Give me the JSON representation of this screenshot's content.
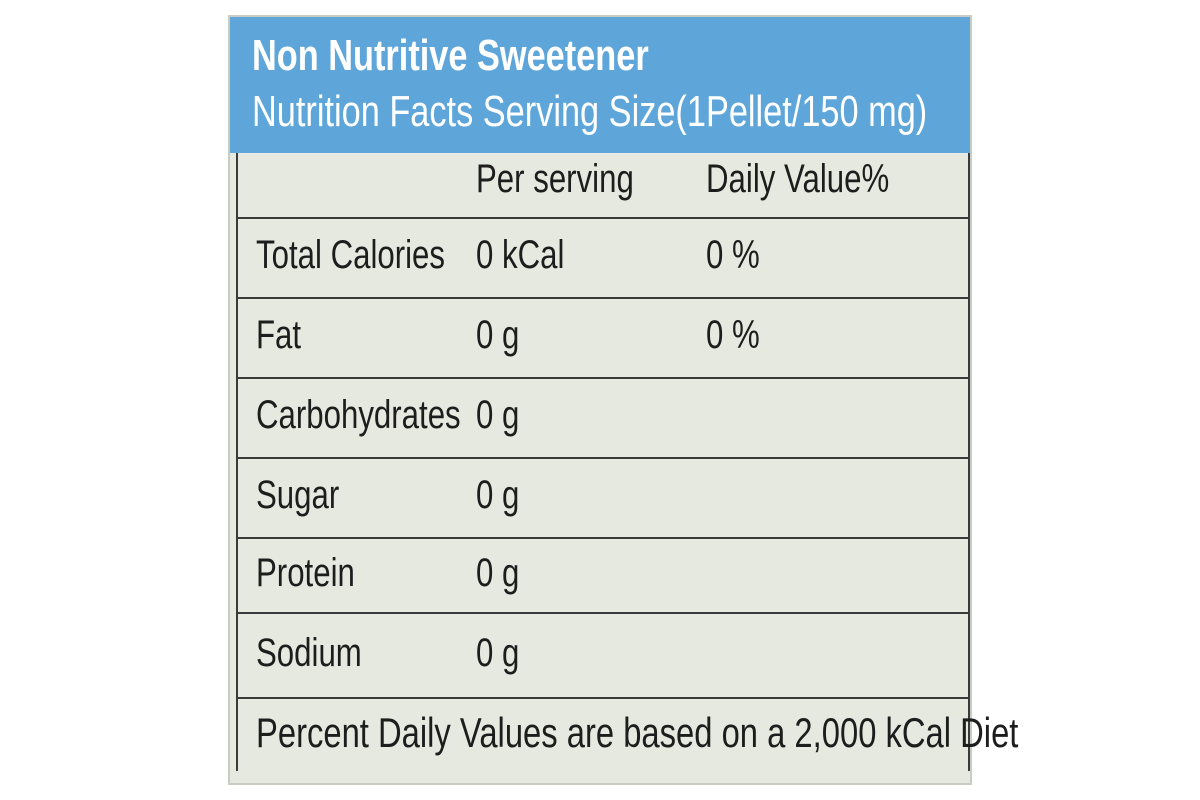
{
  "header": {
    "title": "Non Nutritive Sweetener",
    "subtitle": "Nutrition Facts Serving Size(1Pellet/150 mg)"
  },
  "table": {
    "columns": [
      "Per serving",
      "Daily Value%"
    ],
    "rows": [
      [
        "Total Calories",
        "0 kCal",
        "0 %"
      ],
      [
        "Fat",
        "0 g",
        "0 %"
      ],
      [
        "Carbohydrates",
        "0 g"
      ],
      [
        "Sugar",
        "0 g"
      ],
      [
        "Protein",
        "0 g"
      ],
      [
        "Sodium",
        "0 g"
      ]
    ]
  },
  "footer": "Percent Daily Values are based on a 2,000 kCal Diet"
}
